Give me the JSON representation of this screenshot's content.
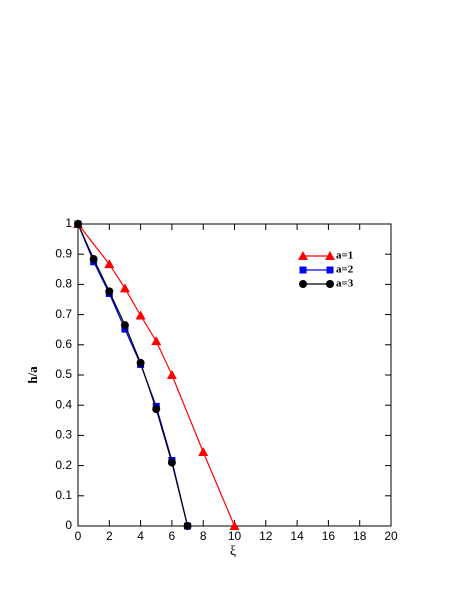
{
  "chart_data": {
    "type": "line",
    "xlabel": "ξ",
    "ylabel": "h/a",
    "xlim": [
      0,
      20
    ],
    "xticks": [
      0,
      2,
      4,
      6,
      8,
      10,
      12,
      14,
      16,
      18,
      20
    ],
    "ylim": [
      0,
      1
    ],
    "yticks": [
      0,
      0.1,
      0.2,
      0.3,
      0.4,
      0.5,
      0.6,
      0.7,
      0.8,
      0.9,
      1
    ],
    "legend": "upper right",
    "series": [
      {
        "name": "a=1",
        "color": "#ff0000",
        "marker": "triangle",
        "x": [
          0,
          2,
          3,
          4,
          5,
          6,
          8,
          10
        ],
        "values": [
          1,
          0.867,
          0.787,
          0.697,
          0.612,
          0.5,
          0.245,
          0
        ]
      },
      {
        "name": "a=2",
        "color": "#0000ff",
        "marker": "square",
        "x": [
          0,
          1,
          2,
          3,
          4,
          5,
          6,
          7
        ],
        "values": [
          1,
          0.875,
          0.77,
          0.652,
          0.535,
          0.396,
          0.217,
          0
        ]
      },
      {
        "name": "a=3",
        "color": "#000000",
        "marker": "circle",
        "x": [
          0,
          1,
          2,
          3,
          4,
          5,
          6,
          7
        ],
        "values": [
          1,
          0.884,
          0.777,
          0.665,
          0.54,
          0.387,
          0.21,
          0
        ]
      }
    ]
  }
}
